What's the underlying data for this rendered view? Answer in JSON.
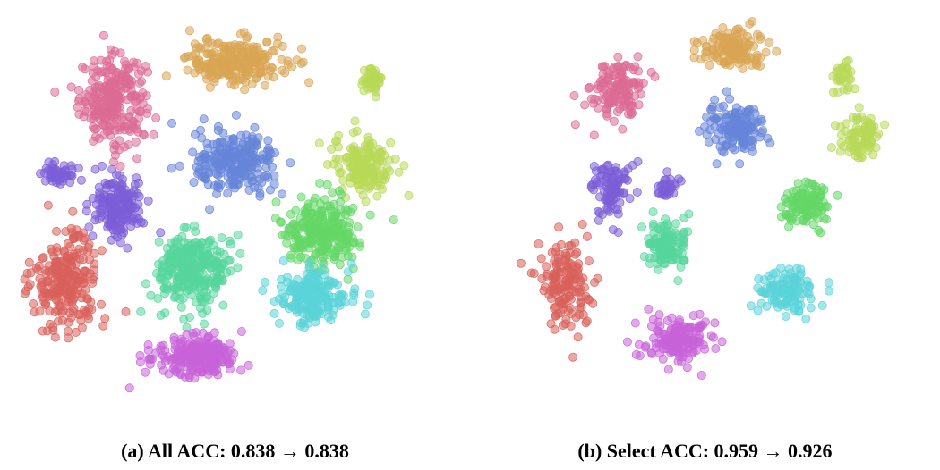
{
  "figure": {
    "panels": [
      {
        "caption": "(a) All ACC: 0.838 → 0.838"
      },
      {
        "caption": "(b) Select ACC: 0.959 → 0.926"
      }
    ]
  },
  "chart_data": [
    {
      "type": "scatter",
      "title": "(a) All ACC: 0.838 → 0.838",
      "xlabel": "",
      "ylabel": "",
      "axes_visible": false,
      "grid": false,
      "legend": "none",
      "xlim": [
        0,
        1
      ],
      "ylim": [
        0,
        1
      ],
      "series": [
        {
          "color": "#dc6b93",
          "clusters": [
            {
              "cx": 0.255,
              "cy": 0.775,
              "sx": 0.065,
              "sy": 0.085,
              "n": 260
            }
          ]
        },
        {
          "color": "#d9a553",
          "clusters": [
            {
              "cx": 0.545,
              "cy": 0.865,
              "sx": 0.095,
              "sy": 0.045,
              "n": 240
            }
          ]
        },
        {
          "color": "#b8d957",
          "clusters": [
            {
              "cx": 0.845,
              "cy": 0.625,
              "sx": 0.06,
              "sy": 0.06,
              "n": 150
            },
            {
              "cx": 0.865,
              "cy": 0.82,
              "sx": 0.03,
              "sy": 0.03,
              "n": 40
            }
          ]
        },
        {
          "color": "#6685d9",
          "clusters": [
            {
              "cx": 0.545,
              "cy": 0.625,
              "sx": 0.08,
              "sy": 0.06,
              "n": 240
            }
          ]
        },
        {
          "color": "#7b5ed7",
          "clusters": [
            {
              "cx": 0.265,
              "cy": 0.525,
              "sx": 0.05,
              "sy": 0.06,
              "n": 170
            },
            {
              "cx": 0.13,
              "cy": 0.6,
              "sx": 0.04,
              "sy": 0.025,
              "n": 50
            }
          ]
        },
        {
          "color": "#d9605b",
          "clusters": [
            {
              "cx": 0.145,
              "cy": 0.35,
              "sx": 0.065,
              "sy": 0.09,
              "n": 240
            }
          ]
        },
        {
          "color": "#56d69c",
          "clusters": [
            {
              "cx": 0.445,
              "cy": 0.375,
              "sx": 0.07,
              "sy": 0.07,
              "n": 300
            }
          ]
        },
        {
          "color": "#64d766",
          "clusters": [
            {
              "cx": 0.745,
              "cy": 0.465,
              "sx": 0.075,
              "sy": 0.065,
              "n": 260
            }
          ]
        },
        {
          "color": "#5ad4d9",
          "clusters": [
            {
              "cx": 0.725,
              "cy": 0.315,
              "sx": 0.065,
              "sy": 0.055,
              "n": 200
            }
          ]
        },
        {
          "color": "#c863d9",
          "clusters": [
            {
              "cx": 0.455,
              "cy": 0.17,
              "sx": 0.085,
              "sy": 0.04,
              "n": 230
            }
          ]
        }
      ]
    },
    {
      "type": "scatter",
      "title": "(b) Select ACC: 0.959 → 0.926",
      "xlabel": "",
      "ylabel": "",
      "axes_visible": false,
      "grid": false,
      "legend": "none",
      "xlim": [
        0,
        1
      ],
      "ylim": [
        0,
        1
      ],
      "series": [
        {
          "color": "#dc6b93",
          "clusters": [
            {
              "cx": 0.27,
              "cy": 0.8,
              "sx": 0.055,
              "sy": 0.06,
              "n": 140
            }
          ]
        },
        {
          "color": "#d9a553",
          "clusters": [
            {
              "cx": 0.555,
              "cy": 0.895,
              "sx": 0.07,
              "sy": 0.04,
              "n": 140
            }
          ]
        },
        {
          "color": "#b8d957",
          "clusters": [
            {
              "cx": 0.88,
              "cy": 0.69,
              "sx": 0.04,
              "sy": 0.045,
              "n": 90
            },
            {
              "cx": 0.835,
              "cy": 0.83,
              "sx": 0.025,
              "sy": 0.025,
              "n": 30
            }
          ]
        },
        {
          "color": "#6685d9",
          "clusters": [
            {
              "cx": 0.56,
              "cy": 0.71,
              "sx": 0.06,
              "sy": 0.045,
              "n": 150
            }
          ]
        },
        {
          "color": "#7b5ed7",
          "clusters": [
            {
              "cx": 0.255,
              "cy": 0.56,
              "sx": 0.04,
              "sy": 0.055,
              "n": 100
            },
            {
              "cx": 0.39,
              "cy": 0.57,
              "sx": 0.022,
              "sy": 0.025,
              "n": 30
            }
          ]
        },
        {
          "color": "#d9605b",
          "clusters": [
            {
              "cx": 0.135,
              "cy": 0.345,
              "sx": 0.055,
              "sy": 0.08,
              "n": 150
            }
          ]
        },
        {
          "color": "#56d69c",
          "clusters": [
            {
              "cx": 0.395,
              "cy": 0.43,
              "sx": 0.045,
              "sy": 0.05,
              "n": 120
            }
          ]
        },
        {
          "color": "#64d766",
          "clusters": [
            {
              "cx": 0.745,
              "cy": 0.525,
              "sx": 0.055,
              "sy": 0.045,
              "n": 110
            }
          ]
        },
        {
          "color": "#5ad4d9",
          "clusters": [
            {
              "cx": 0.7,
              "cy": 0.325,
              "sx": 0.06,
              "sy": 0.045,
              "n": 120
            }
          ]
        },
        {
          "color": "#c863d9",
          "clusters": [
            {
              "cx": 0.415,
              "cy": 0.21,
              "sx": 0.075,
              "sy": 0.045,
              "n": 150
            }
          ]
        }
      ]
    }
  ]
}
